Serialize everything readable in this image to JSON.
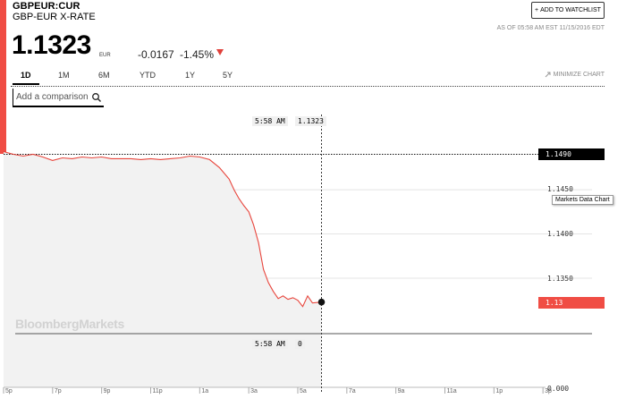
{
  "header": {
    "ticker": "GBPEUR:CUR",
    "name": "GBP-EUR X-RATE",
    "watchlist_label": "ADD TO WATCHLIST",
    "asof": "AS OF 05:58 AM EST 11/15/2016 EDT",
    "price": "1.1323",
    "currency": "EUR",
    "change": "-0.0167",
    "change_pct": "-1.45%",
    "down_color": "#e0413b"
  },
  "tabs": [
    {
      "label": "1D",
      "active": true
    },
    {
      "label": "1M"
    },
    {
      "label": "6M"
    },
    {
      "label": "YTD"
    },
    {
      "label": "1Y"
    },
    {
      "label": "5Y"
    }
  ],
  "minimize_label": "MINIMIZE CHART",
  "compare": {
    "placeholder": "Add a comparison"
  },
  "crosshair": {
    "time_top": "5:58 AM",
    "price_top": "1.1323",
    "time_bottom": "5:58 AM",
    "volume": "0"
  },
  "tooltip": "Markets Data Chart",
  "watermark": "BloombergMarkets",
  "last_label": "1.1490",
  "current_label": "1.13",
  "chart_data": {
    "type": "line",
    "y_ticks": [
      "1.1450",
      "1.1400",
      "1.1350"
    ],
    "y_ticks_values": [
      1.145,
      1.14,
      1.135
    ],
    "volume_tick": "0.000",
    "x_ticks": [
      "5p",
      "7p",
      "9p",
      "11p",
      "1a",
      "3a",
      "5a",
      "7a",
      "9a",
      "11a",
      "1p",
      "3p"
    ],
    "x_tick_hours": [
      17,
      19,
      21,
      23,
      25,
      27,
      29,
      31,
      33,
      35,
      37,
      39
    ],
    "series": [
      {
        "color": "#e8453c",
        "x_hours": [
          17.0,
          17.4,
          17.8,
          18.2,
          18.6,
          19.0,
          19.4,
          19.8,
          20.2,
          20.6,
          21.0,
          21.4,
          21.8,
          22.2,
          22.6,
          23.0,
          23.4,
          23.8,
          24.2,
          24.6,
          25.0,
          25.4,
          25.8,
          26.2,
          26.4,
          26.6,
          26.8,
          27.0,
          27.2,
          27.4,
          27.6,
          27.8,
          28.0,
          28.2,
          28.4,
          28.6,
          28.8,
          29.0,
          29.2,
          29.4,
          29.6,
          29.967
        ],
        "y": [
          1.1493,
          1.149,
          1.1488,
          1.149,
          1.1487,
          1.1483,
          1.1486,
          1.1485,
          1.1487,
          1.1486,
          1.1487,
          1.1485,
          1.1485,
          1.1485,
          1.1484,
          1.1485,
          1.1484,
          1.1485,
          1.1486,
          1.1488,
          1.1487,
          1.1484,
          1.1475,
          1.1462,
          1.145,
          1.144,
          1.1432,
          1.1425,
          1.141,
          1.139,
          1.136,
          1.1345,
          1.1335,
          1.1327,
          1.133,
          1.1326,
          1.1328,
          1.1325,
          1.1318,
          1.133,
          1.1322,
          1.1323
        ]
      }
    ],
    "xlim": [
      17,
      41
    ],
    "ylim": [
      1.132,
      1.1495
    ],
    "last_close": 1.149
  }
}
